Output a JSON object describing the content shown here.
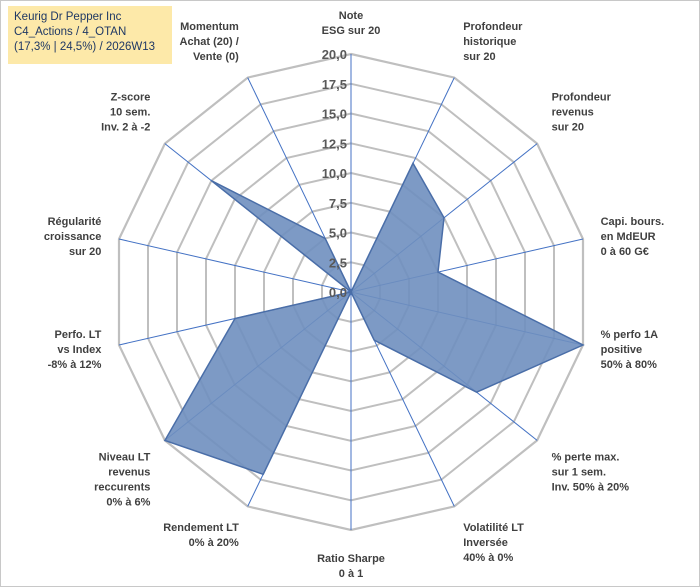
{
  "title_box": {
    "company": "Keurig Dr Pepper Inc",
    "portfolio": "C4_Actions / 4_OTAN",
    "stats": "(17,3% | 24,5%) / 2026W13"
  },
  "colors": {
    "title_bg": "#fde9a9",
    "title_text": "#1f3864",
    "grid": "#bfbfbf",
    "spoke": "#4472c4",
    "fill": "#6f8fbf",
    "stroke": "#4a6ea8",
    "label": "#404040"
  },
  "chart_data": {
    "type": "radar",
    "rmax": 20,
    "rticks": [
      "0,0",
      "2,5",
      "5,0",
      "7,5",
      "10,0",
      "12,5",
      "15,0",
      "17,5",
      "20,0"
    ],
    "rtick_values": [
      0,
      2.5,
      5,
      7.5,
      10,
      12.5,
      15,
      17.5,
      20
    ],
    "axes": [
      {
        "lines": [
          "Note",
          "ESG sur 20"
        ],
        "value": 0
      },
      {
        "lines": [
          "Profondeur",
          "historique",
          "sur 20"
        ],
        "value": 12
      },
      {
        "lines": [
          "Profondeur",
          "revenus",
          "sur 20"
        ],
        "value": 10
      },
      {
        "lines": [
          "Capi. bours.",
          "en MdEUR",
          "0 à 60 G€"
        ],
        "value": 7.5
      },
      {
        "lines": [
          "% perfo 1A",
          "positive",
          "50% à 80%"
        ],
        "value": 20
      },
      {
        "lines": [
          "% perte max.",
          "sur 1 sem.",
          "Inv. 50% à 20%"
        ],
        "value": 13.5
      },
      {
        "lines": [
          "Volatilité LT",
          "Inversée",
          "40% à 0%"
        ],
        "value": 4.5
      },
      {
        "lines": [
          "Ratio Sharpe",
          "0 à 1"
        ],
        "value": 0
      },
      {
        "lines": [
          "Rendement LT",
          "0% à 20%"
        ],
        "value": 17
      },
      {
        "lines": [
          "Niveau LT",
          "revenus",
          "reccurents",
          "0% à 6%"
        ],
        "value": 20
      },
      {
        "lines": [
          "Perfo. LT",
          "vs Index",
          "-8% à 12%"
        ],
        "value": 10
      },
      {
        "lines": [
          "Régularité",
          "croissance",
          "sur 20"
        ],
        "value": 0
      },
      {
        "lines": [
          "Z-score",
          "10 sem.",
          "Inv. 2 à -2"
        ],
        "value": 15
      },
      {
        "lines": [
          "Momentum",
          "Achat (20) /",
          "Vente (0)"
        ],
        "value": 5
      }
    ]
  }
}
